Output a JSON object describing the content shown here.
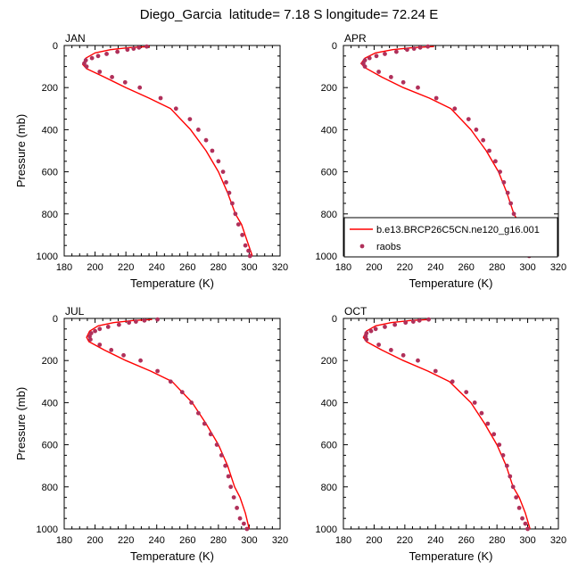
{
  "title": "Diego_Garcia  latitude= 7.18 S longitude= 72.24 E",
  "colors": {
    "model": "#ff0000",
    "obs": "#b0305a",
    "axis": "#000000",
    "background": "#ffffff"
  },
  "legend": {
    "model_label": "b.e13.BRCP26C5CN.ne120_g16.001",
    "obs_label": "raobs",
    "panel": "APR",
    "placement": "bottom-right"
  },
  "chart_data": [
    {
      "type": "line",
      "panel": "JAN",
      "xlabel": "Temperature (K)",
      "ylabel": "Pressure (mb)",
      "xlim": [
        180,
        320
      ],
      "ylim": [
        1000,
        0
      ],
      "xticks": [
        180,
        200,
        220,
        240,
        260,
        280,
        300,
        320
      ],
      "yticks": [
        0,
        200,
        400,
        600,
        800,
        1000
      ],
      "series": [
        {
          "name": "b.e13.BRCP26C5CN.ne120_g16.001",
          "kind": "line",
          "x": [
            235.5,
            222.0,
            210.0,
            200.0,
            194.0,
            192.0,
            194.5,
            206.0,
            220.0,
            235.0,
            249.0,
            262.0,
            272.0,
            280.0,
            286.0,
            291.0,
            295.0,
            298.5,
            302.0
          ],
          "y": [
            5,
            10,
            20,
            35,
            60,
            90,
            110,
            150,
            200,
            250,
            300,
            400,
            500,
            600,
            700,
            800,
            850,
            925,
            1000
          ]
        },
        {
          "name": "raobs",
          "kind": "scatter",
          "x": [
            233.5,
            228.5,
            225.0,
            221.0,
            214.5,
            207.5,
            202.0,
            198.0,
            194.0,
            193.0,
            194.5,
            203.0,
            211.0,
            219.5,
            229.0,
            242.5,
            252.5,
            261.5,
            267.0,
            272.0,
            276.0,
            280.0,
            283.0,
            285.0,
            287.0,
            289.0,
            291.0,
            293.0,
            295.5,
            297.5,
            299.5,
            300.5
          ],
          "y": [
            5,
            10,
            15,
            20,
            30,
            40,
            50,
            60,
            70,
            85,
            100,
            125,
            150,
            175,
            200,
            250,
            300,
            350,
            400,
            450,
            500,
            550,
            600,
            650,
            700,
            750,
            800,
            850,
            900,
            950,
            975,
            1000
          ]
        }
      ]
    },
    {
      "type": "line",
      "panel": "APR",
      "xlabel": "Temperature (K)",
      "ylabel": "",
      "xlim": [
        180,
        320
      ],
      "ylim": [
        1000,
        0
      ],
      "xticks": [
        180,
        200,
        220,
        240,
        260,
        280,
        300,
        320
      ],
      "yticks": [
        0,
        200,
        400,
        600,
        800,
        1000
      ],
      "series": [
        {
          "name": "b.e13.BRCP26C5CN.ne120_g16.001",
          "kind": "line",
          "x": [
            239.0,
            225.0,
            212.0,
            201.0,
            194.0,
            191.5,
            194.0,
            205.0,
            219.0,
            236.0,
            250.0,
            263.0,
            273.0,
            281.0,
            286.5,
            291.0,
            295.0,
            299.0,
            302.0
          ],
          "y": [
            5,
            10,
            20,
            35,
            60,
            85,
            105,
            150,
            200,
            250,
            300,
            400,
            500,
            600,
            700,
            800,
            850,
            925,
            1000
          ]
        },
        {
          "name": "raobs",
          "kind": "scatter",
          "x": [
            235.0,
            230.0,
            226.0,
            221.5,
            214.5,
            207.0,
            201.5,
            197.0,
            194.0,
            193.0,
            194.0,
            203.0,
            211.0,
            219.0,
            228.5,
            240.5,
            252.5,
            261.5,
            266.5,
            271.0,
            275.0,
            279.0,
            282.0,
            284.5,
            287.0,
            289.0,
            291.0,
            293.0,
            295.5,
            297.5,
            299.5,
            301.0
          ],
          "y": [
            5,
            10,
            15,
            20,
            30,
            40,
            50,
            60,
            70,
            85,
            100,
            125,
            150,
            175,
            200,
            250,
            300,
            350,
            400,
            450,
            500,
            550,
            600,
            650,
            700,
            750,
            800,
            850,
            900,
            950,
            975,
            1000
          ]
        }
      ]
    },
    {
      "type": "line",
      "panel": "JUL",
      "xlabel": "Temperature (K)",
      "ylabel": "Pressure (mb)",
      "xlim": [
        180,
        320
      ],
      "ylim": [
        1000,
        0
      ],
      "xticks": [
        180,
        200,
        220,
        240,
        260,
        280,
        300,
        320
      ],
      "yticks": [
        0,
        200,
        400,
        600,
        800,
        1000
      ],
      "series": [
        {
          "name": "b.e13.BRCP26C5CN.ne120_g16.001",
          "kind": "line",
          "x": [
            237.0,
            224.0,
            212.0,
            202.0,
            196.5,
            194.5,
            196.0,
            206.0,
            220.0,
            236.0,
            250.0,
            263.0,
            272.0,
            280.0,
            286.0,
            290.5,
            294.0,
            297.5,
            300.0
          ],
          "y": [
            5,
            10,
            20,
            35,
            60,
            90,
            110,
            150,
            200,
            250,
            300,
            400,
            500,
            600,
            700,
            800,
            850,
            925,
            1000
          ]
        },
        {
          "name": "raobs",
          "kind": "scatter",
          "x": [
            240.5,
            232.0,
            226.5,
            222.0,
            215.5,
            208.5,
            203.0,
            200.0,
            197.5,
            196.5,
            197.0,
            203.0,
            210.5,
            218.5,
            229.5,
            240.5,
            249.0,
            256.5,
            262.5,
            267.0,
            271.0,
            275.0,
            279.0,
            282.0,
            284.5,
            286.5,
            288.0,
            290.0,
            292.0,
            294.0,
            296.5,
            298.5
          ],
          "y": [
            5,
            10,
            15,
            20,
            30,
            40,
            50,
            60,
            70,
            85,
            100,
            125,
            150,
            175,
            200,
            250,
            300,
            350,
            400,
            450,
            500,
            550,
            600,
            650,
            700,
            750,
            800,
            850,
            900,
            950,
            975,
            1000
          ]
        }
      ]
    },
    {
      "type": "line",
      "panel": "OCT",
      "xlabel": "Temperature (K)",
      "ylabel": "",
      "xlim": [
        180,
        320
      ],
      "ylim": [
        1000,
        0
      ],
      "xticks": [
        180,
        200,
        220,
        240,
        260,
        280,
        300,
        320
      ],
      "yticks": [
        0,
        200,
        400,
        600,
        800,
        1000
      ],
      "series": [
        {
          "name": "b.e13.BRCP26C5CN.ne120_g16.001",
          "kind": "line",
          "x": [
            236.0,
            223.0,
            211.0,
            201.0,
            195.0,
            193.0,
            195.0,
            205.0,
            219.0,
            235.0,
            249.0,
            263.0,
            272.0,
            280.0,
            286.0,
            290.5,
            294.5,
            298.5,
            301.5
          ],
          "y": [
            5,
            10,
            20,
            35,
            60,
            90,
            110,
            150,
            200,
            250,
            300,
            400,
            500,
            600,
            700,
            800,
            850,
            925,
            1000
          ]
        },
        {
          "name": "raobs",
          "kind": "scatter",
          "x": [
            235.5,
            229.5,
            225.5,
            220.5,
            213.5,
            207.0,
            201.0,
            198.0,
            195.0,
            194.5,
            195.0,
            203.0,
            211.0,
            219.0,
            228.5,
            240.0,
            251.0,
            260.0,
            265.5,
            270.0,
            274.0,
            278.0,
            281.5,
            284.0,
            286.5,
            288.5,
            290.5,
            292.5,
            294.5,
            296.5,
            298.5,
            300.0
          ],
          "y": [
            5,
            10,
            15,
            20,
            30,
            40,
            50,
            60,
            70,
            85,
            100,
            125,
            150,
            175,
            200,
            250,
            300,
            350,
            400,
            450,
            500,
            550,
            600,
            650,
            700,
            750,
            800,
            850,
            900,
            950,
            975,
            1000
          ]
        }
      ]
    }
  ]
}
